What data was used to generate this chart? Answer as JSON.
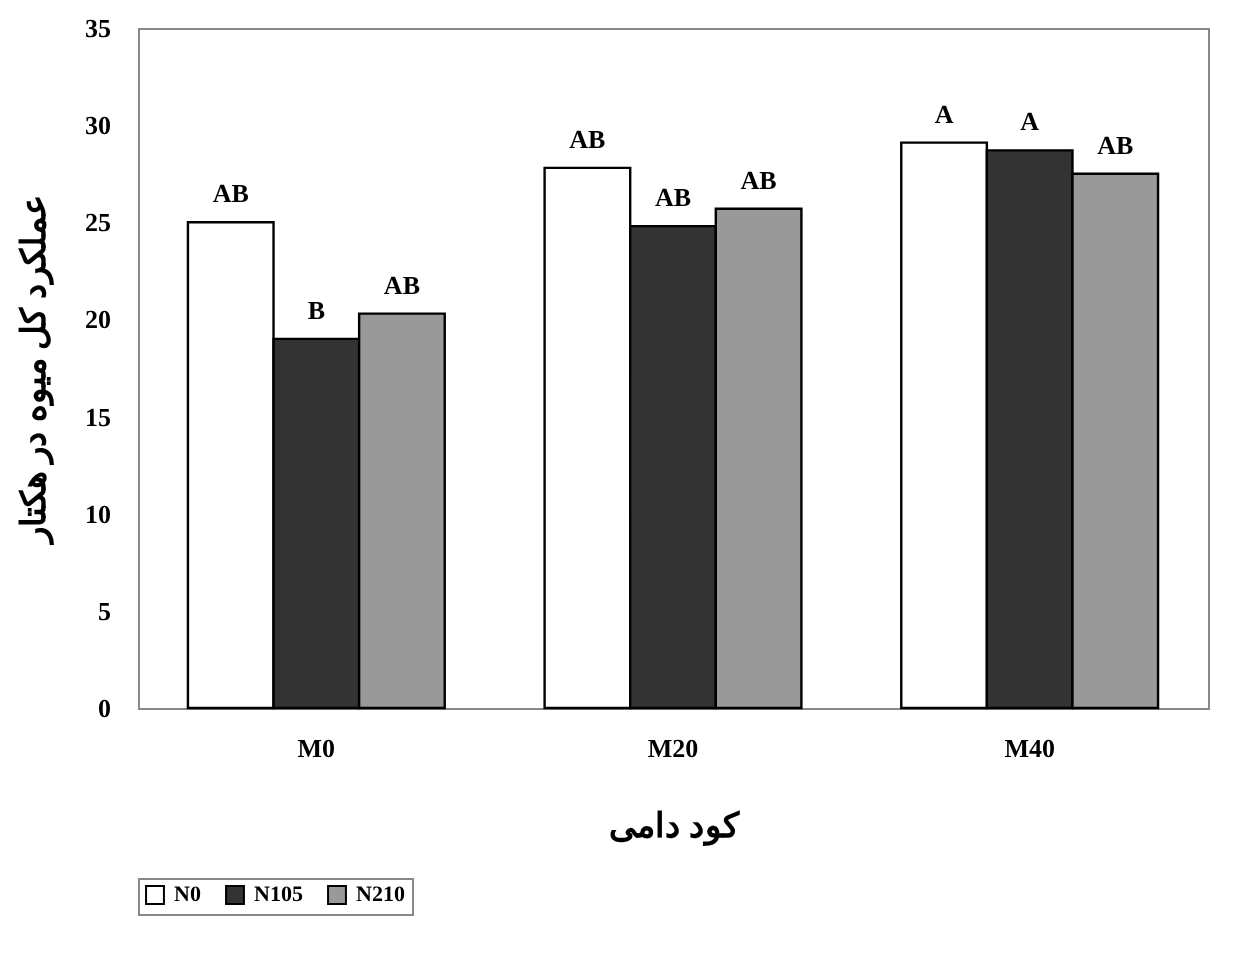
{
  "chart_data": {
    "type": "bar",
    "xlabel": "کود دامی",
    "ylabel": "عملکرد کل میوه در هکتار",
    "categories": [
      "M0",
      "M20",
      "M40"
    ],
    "series": [
      {
        "name": "N0",
        "color": "#ffffff",
        "values": [
          25.0,
          27.8,
          29.1
        ]
      },
      {
        "name": "N105",
        "color": "#333333",
        "values": [
          19.0,
          24.8,
          28.7
        ]
      },
      {
        "name": "N210",
        "color": "#999999",
        "values": [
          20.3,
          25.7,
          27.5
        ]
      }
    ],
    "ylim": [
      0,
      35
    ],
    "yticks": [
      0,
      5,
      10,
      15,
      20,
      25,
      30,
      35
    ],
    "legend": "bottom",
    "annotations": [
      "AB",
      "B",
      "AB",
      "AB",
      "AB",
      "AB",
      "A",
      "A",
      "AB"
    ]
  }
}
